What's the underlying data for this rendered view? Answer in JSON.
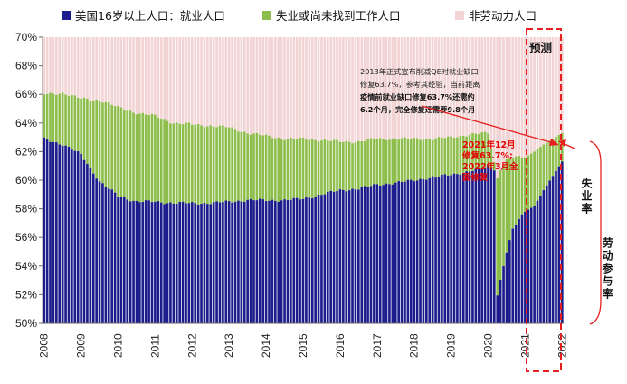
{
  "chart_data": {
    "type": "bar",
    "stacked": true,
    "ylim": [
      50,
      70
    ],
    "yticks": [
      "50%",
      "52%",
      "54%",
      "56%",
      "58%",
      "60%",
      "62%",
      "64%",
      "66%",
      "68%",
      "70%"
    ],
    "years": [
      "2008",
      "2009",
      "2010",
      "2011",
      "2012",
      "2013",
      "2014",
      "2015",
      "2016",
      "2017",
      "2018",
      "2019",
      "2020",
      "2021",
      "2022"
    ],
    "start": "2008-01",
    "months": 169,
    "forecast_start_index": 156,
    "legend": [
      {
        "label": "美国16岁以上人口：就业人口",
        "color": "#1c1c8c"
      },
      {
        "label": "失业或尚未找到工作人口",
        "color": "#8dbd4a"
      },
      {
        "label": "非劳动力人口",
        "color": "#f2d4d4"
      }
    ],
    "series": [
      {
        "name": "美国16岁以上人口：就业人口",
        "role": "employment_ratio",
        "anchors": [
          [
            0,
            62.9
          ],
          [
            6,
            62.5
          ],
          [
            12,
            61.8
          ],
          [
            18,
            59.9
          ],
          [
            24,
            58.9
          ],
          [
            30,
            58.5
          ],
          [
            36,
            58.5
          ],
          [
            42,
            58.4
          ],
          [
            48,
            58.4
          ],
          [
            54,
            58.4
          ],
          [
            60,
            58.5
          ],
          [
            66,
            58.6
          ],
          [
            72,
            58.6
          ],
          [
            78,
            58.6
          ],
          [
            84,
            58.7
          ],
          [
            90,
            59.0
          ],
          [
            96,
            59.3
          ],
          [
            102,
            59.4
          ],
          [
            108,
            59.7
          ],
          [
            114,
            59.8
          ],
          [
            120,
            60.0
          ],
          [
            126,
            60.2
          ],
          [
            132,
            60.4
          ],
          [
            138,
            60.6
          ],
          [
            144,
            61.0
          ],
          [
            146,
            60.8
          ],
          [
            147,
            52.0
          ],
          [
            148,
            53.0
          ],
          [
            150,
            55.0
          ],
          [
            152,
            56.5
          ],
          [
            154,
            57.3
          ],
          [
            156,
            57.8
          ],
          [
            159,
            58.2
          ],
          [
            162,
            59.3
          ],
          [
            165,
            60.3
          ],
          [
            168,
            61.3
          ]
        ]
      },
      {
        "name": "失业或尚未找到工作人口",
        "role": "participation_rate",
        "anchors": [
          [
            0,
            66.0
          ],
          [
            6,
            66.1
          ],
          [
            12,
            65.7
          ],
          [
            18,
            65.6
          ],
          [
            24,
            65.1
          ],
          [
            30,
            64.7
          ],
          [
            36,
            64.5
          ],
          [
            42,
            64.0
          ],
          [
            48,
            63.9
          ],
          [
            54,
            63.8
          ],
          [
            60,
            63.7
          ],
          [
            66,
            63.3
          ],
          [
            72,
            63.1
          ],
          [
            78,
            62.9
          ],
          [
            84,
            62.9
          ],
          [
            90,
            62.8
          ],
          [
            96,
            62.7
          ],
          [
            102,
            62.7
          ],
          [
            108,
            62.9
          ],
          [
            114,
            62.9
          ],
          [
            120,
            62.9
          ],
          [
            126,
            62.9
          ],
          [
            132,
            63.0
          ],
          [
            138,
            63.2
          ],
          [
            144,
            63.3
          ],
          [
            147,
            60.2
          ],
          [
            148,
            60.8
          ],
          [
            150,
            61.4
          ],
          [
            152,
            61.6
          ],
          [
            156,
            61.6
          ],
          [
            159,
            62.0
          ],
          [
            162,
            62.5
          ],
          [
            165,
            62.9
          ],
          [
            168,
            63.3
          ]
        ]
      }
    ],
    "annotations": {
      "note1": {
        "lines": [
          [
            "2013年正式宣布削减QE时就业缺口"
          ],
          [
            "修复63.7%，参考其经验，当前距离"
          ],
          [
            "疫情前就业缺口修复63.7%还需约"
          ],
          [
            "6.2个月，完全修复还需要9.8个月"
          ]
        ]
      },
      "note2": [
        "2021年12月",
        "修复63.7%;",
        "2022年3月全",
        "面修复"
      ],
      "forecast_label": "预测",
      "unemployment_label": "失业率",
      "participation_label": "劳动参与率"
    }
  }
}
